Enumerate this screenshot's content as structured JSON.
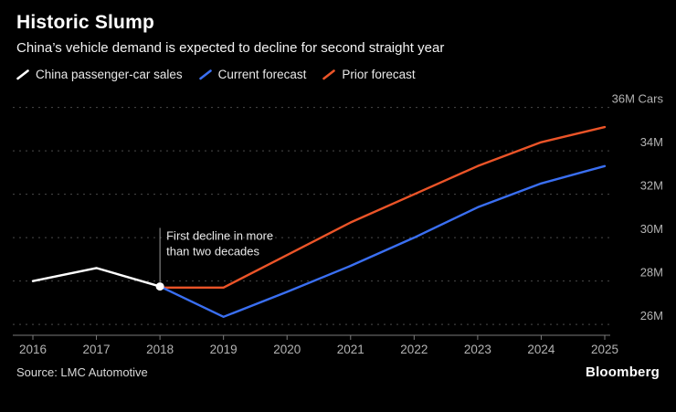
{
  "header": {
    "title": "Historic Slump",
    "subtitle": "China’s vehicle demand is expected to decline for second straight year"
  },
  "legend": [
    {
      "label": "China passenger-car sales",
      "color": "#ffffff"
    },
    {
      "label": "Current forecast",
      "color": "#3a6ff2"
    },
    {
      "label": "Prior forecast",
      "color": "#eb5428"
    }
  ],
  "footer": {
    "source": "Source: LMC Automotive",
    "brand": "Bloomberg"
  },
  "chart_data": {
    "type": "line",
    "title": "Historic Slump",
    "subtitle": "China’s vehicle demand is expected to decline for second straight year",
    "x": [
      2016,
      2017,
      2018,
      2019,
      2020,
      2021,
      2022,
      2023,
      2024,
      2025
    ],
    "xlabel": "",
    "ylabel": "Cars",
    "ylim": [
      26,
      36
    ],
    "yticks": [
      {
        "value": 26,
        "label": "26M"
      },
      {
        "value": 28,
        "label": "28M"
      },
      {
        "value": 30,
        "label": "30M"
      },
      {
        "value": 32,
        "label": "32M"
      },
      {
        "value": 34,
        "label": "34M"
      },
      {
        "value": 36,
        "label": "36M Cars"
      }
    ],
    "grid": "dotted-horizontal",
    "legend_position": "top",
    "series": [
      {
        "name": "Prior forecast",
        "color": "#eb5428",
        "x": [
          2018,
          2019,
          2020,
          2021,
          2022,
          2023,
          2024,
          2025
        ],
        "values": [
          27.7,
          27.7,
          29.2,
          30.7,
          32.0,
          33.3,
          34.4,
          35.1
        ]
      },
      {
        "name": "Current forecast",
        "color": "#3a6ff2",
        "x": [
          2018,
          2019,
          2020,
          2021,
          2022,
          2023,
          2024,
          2025
        ],
        "values": [
          27.75,
          26.35,
          27.5,
          28.7,
          30.0,
          31.4,
          32.5,
          33.3
        ]
      },
      {
        "name": "China passenger-car sales",
        "color": "#ffffff",
        "x": [
          2016,
          2017,
          2018
        ],
        "values": [
          28.0,
          28.6,
          27.75
        ],
        "end_dot": true
      }
    ],
    "annotation": {
      "text_lines": [
        "First decline in more",
        "than two decades"
      ],
      "x": 2018,
      "y_from": 27.95,
      "y_to": 30.45
    }
  }
}
